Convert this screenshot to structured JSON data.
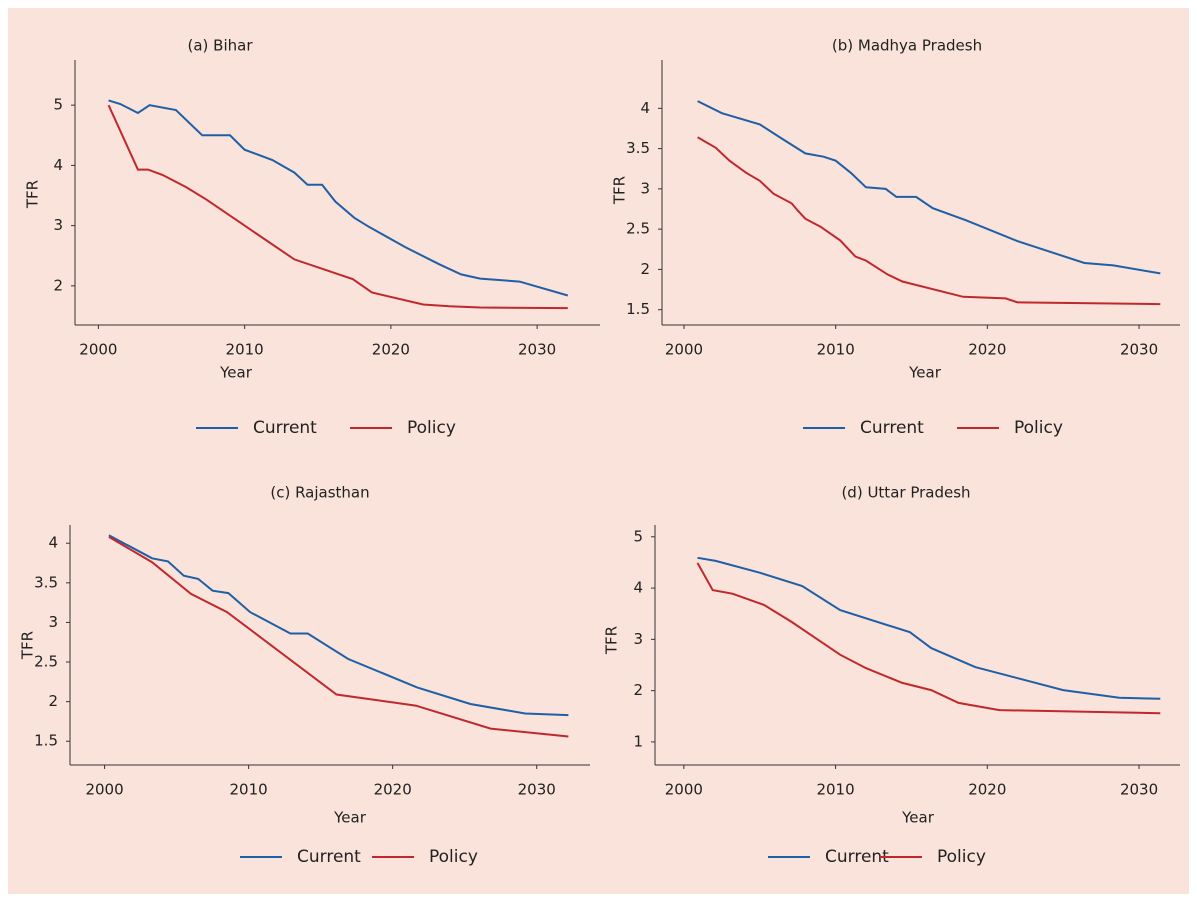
{
  "chart_data": [
    {
      "type": "line",
      "title": "(a) Bihar",
      "xlabel": "Year",
      "ylabel": "TFR",
      "xlim": [
        1998.4,
        2034.3
      ],
      "ylim": [
        1.35,
        5.75
      ],
      "xticks": [
        2000,
        2010,
        2020,
        2030
      ],
      "yticks": [
        2,
        3,
        4,
        5
      ],
      "series": [
        {
          "name": "Current",
          "color": "#1f5fa6",
          "x": [
            2000.7,
            2001.5,
            2002.7,
            2003.5,
            2005.3,
            2007.1,
            2009.0,
            2010,
            2011.9,
            2013.4,
            2014.3,
            2015.3,
            2016.2,
            2017.5,
            2018.5,
            2021,
            2023.3,
            2024.8,
            2026.1,
            2028.8,
            2032.1
          ],
          "values": [
            5.08,
            5.02,
            4.87,
            5.0,
            4.92,
            4.5,
            4.5,
            4.26,
            4.09,
            3.88,
            3.68,
            3.68,
            3.4,
            3.13,
            2.98,
            2.64,
            2.36,
            2.19,
            2.12,
            2.07,
            1.84
          ]
        },
        {
          "name": "Policy",
          "color": "#c0282d",
          "x": [
            2000.7,
            2002.7,
            2003.4,
            2004.4,
            2006,
            2007.4,
            2010,
            2013.4,
            2017.4,
            2018.7,
            2022.2,
            2024,
            2026.1,
            2032.1
          ],
          "values": [
            5.0,
            3.93,
            3.93,
            3.84,
            3.64,
            3.43,
            3.0,
            2.44,
            2.11,
            1.89,
            1.69,
            1.66,
            1.64,
            1.63
          ]
        }
      ]
    },
    {
      "type": "line",
      "title": "(b) Madhya Pradesh",
      "xlabel": "Year",
      "ylabel": "TFR",
      "xlim": [
        1998.55,
        2032.7
      ],
      "ylim": [
        1.31,
        4.6
      ],
      "xticks": [
        2000,
        2010,
        2020,
        2030
      ],
      "yticks": [
        1.5,
        2,
        2.5,
        3,
        3.5,
        4
      ],
      "series": [
        {
          "name": "Current",
          "color": "#1f5fa6",
          "x": [
            2000.9,
            2002.5,
            2005,
            2006.4,
            2008,
            2009.2,
            2010,
            2011,
            2012,
            2013.3,
            2014,
            2015.3,
            2016.4,
            2018.6,
            2022,
            2026.4,
            2028.3,
            2031.4
          ],
          "values": [
            4.09,
            3.94,
            3.8,
            3.63,
            3.44,
            3.4,
            3.35,
            3.2,
            3.02,
            3.0,
            2.9,
            2.9,
            2.76,
            2.61,
            2.35,
            2.08,
            2.05,
            1.95
          ]
        },
        {
          "name": "Policy",
          "color": "#c0282d",
          "x": [
            2000.9,
            2002.1,
            2003,
            2004.1,
            2005,
            2005.9,
            2007.1,
            2007.5,
            2008,
            2009,
            2010.3,
            2011.3,
            2012,
            2013.4,
            2014.4,
            2018.4,
            2021.2,
            2022,
            2031.4
          ],
          "values": [
            3.64,
            3.51,
            3.35,
            3.2,
            3.1,
            2.94,
            2.82,
            2.73,
            2.63,
            2.53,
            2.36,
            2.16,
            2.11,
            1.94,
            1.85,
            1.66,
            1.64,
            1.59,
            1.57
          ]
        }
      ]
    },
    {
      "type": "line",
      "title": "(c) Rajasthan",
      "xlabel": "Year",
      "ylabel": "TFR",
      "xlim": [
        1997.6,
        2033.7
      ],
      "ylim": [
        1.2,
        4.23
      ],
      "xticks": [
        2000,
        2010,
        2020,
        2030
      ],
      "yticks": [
        1.5,
        2,
        2.5,
        3,
        3.5,
        4
      ],
      "series": [
        {
          "name": "Current",
          "color": "#1f5fa6",
          "x": [
            2000.3,
            2003.3,
            2004.4,
            2005.5,
            2006.5,
            2007.5,
            2008.6,
            2010.1,
            2012.9,
            2014.1,
            2016.9,
            2021.7,
            2025.4,
            2029.2,
            2032.2
          ],
          "values": [
            4.1,
            3.81,
            3.77,
            3.59,
            3.55,
            3.4,
            3.37,
            3.13,
            2.86,
            2.86,
            2.54,
            2.18,
            1.97,
            1.85,
            1.83
          ]
        },
        {
          "name": "Policy",
          "color": "#c0282d",
          "x": [
            2000.3,
            2003.3,
            2006,
            2008.5,
            2016.1,
            2021.6,
            2026.8,
            2032.2
          ],
          "values": [
            4.08,
            3.76,
            3.36,
            3.13,
            2.09,
            1.95,
            1.66,
            1.56
          ]
        }
      ]
    },
    {
      "type": "line",
      "title": "(d) Uttar Pradesh",
      "xlabel": "Year",
      "ylabel": "TFR",
      "xlim": [
        1998.1,
        2032.7
      ],
      "ylim": [
        0.55,
        5.23
      ],
      "xticks": [
        2000,
        2010,
        2020,
        2030
      ],
      "yticks": [
        1,
        2,
        3,
        4,
        5
      ],
      "series": [
        {
          "name": "Current",
          "color": "#1f5fa6",
          "x": [
            2000.9,
            2002.1,
            2005,
            2007.8,
            2010.3,
            2014.9,
            2016.3,
            2019.2,
            2025,
            2028.7,
            2031.4
          ],
          "values": [
            4.59,
            4.53,
            4.3,
            4.04,
            3.57,
            3.14,
            2.83,
            2.46,
            2.01,
            1.86,
            1.84
          ]
        },
        {
          "name": "Policy",
          "color": "#c0282d",
          "x": [
            2000.9,
            2001.9,
            2003.2,
            2005.3,
            2007.1,
            2010.3,
            2012,
            2014.4,
            2016.3,
            2018.1,
            2020.8,
            2031.4
          ],
          "values": [
            4.49,
            3.96,
            3.89,
            3.67,
            3.34,
            2.7,
            2.44,
            2.15,
            2.01,
            1.76,
            1.62,
            1.56
          ]
        }
      ]
    }
  ]
}
